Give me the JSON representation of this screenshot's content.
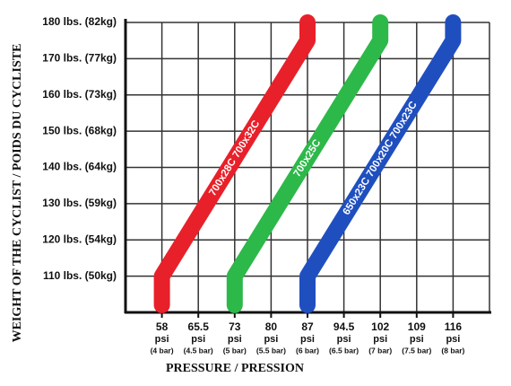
{
  "chart_data": {
    "type": "line",
    "y_title": "WEIGHT OF THE CYCLIST / POIDS DU CYCLISTE",
    "x_title": "PRESSURE / PRESSION",
    "xlim": [
      50.5,
      123.5
    ],
    "xticks": [
      58,
      65.5,
      73,
      80,
      87,
      94.5,
      102,
      109,
      116
    ],
    "xtick_unit": "psi",
    "xtick_bar_labels": [
      "(4 bar)",
      "(4.5 bar)",
      "(5 bar)",
      "(5.5 bar)",
      "(6 bar)",
      "(6.5 bar)",
      "(7 bar)",
      "(7.5 bar)",
      "(8 bar)"
    ],
    "ylim": [
      100,
      180
    ],
    "yticks": [
      {
        "value": 110,
        "label": "110 lbs. (50kg)"
      },
      {
        "value": 120,
        "label": "120 lbs. (54kg)"
      },
      {
        "value": 130,
        "label": "130 lbs. (59kg)"
      },
      {
        "value": 140,
        "label": "140 lbs. (64kg)"
      },
      {
        "value": 150,
        "label": "150 lbs. (68kg)"
      },
      {
        "value": 160,
        "label": "160 lbs. (73kg)"
      },
      {
        "value": 170,
        "label": "170 lbs. (77kg)"
      },
      {
        "value": 180,
        "label": "180 lbs. (82kg)"
      }
    ],
    "grid": true,
    "series": [
      {
        "name": "700x28C 700x32C",
        "color": "#e8202a",
        "x": [
          58,
          58,
          87,
          87
        ],
        "values": [
          102,
          110,
          175,
          180
        ]
      },
      {
        "name": "700x25C",
        "color": "#2db84a",
        "x": [
          73,
          73,
          102,
          102
        ],
        "values": [
          102,
          110,
          175,
          180
        ]
      },
      {
        "name": "650x23C 700x20C 700x23C",
        "color": "#1f4fbf",
        "x": [
          87,
          87,
          116,
          116
        ],
        "values": [
          102,
          110,
          175,
          180
        ]
      }
    ]
  }
}
